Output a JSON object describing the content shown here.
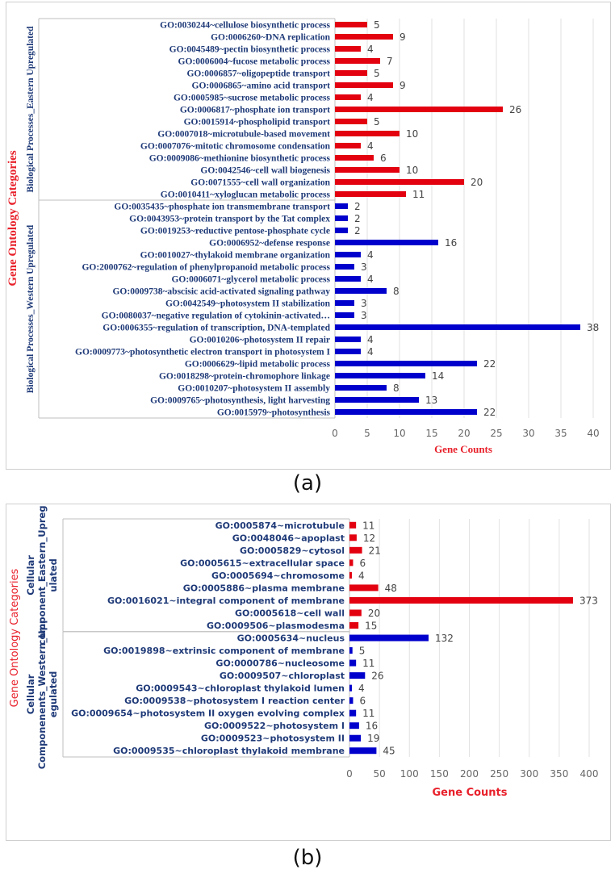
{
  "chart_data": [
    {
      "type": "bar",
      "orientation": "horizontal",
      "panel_label": "(a)",
      "ylabel": "Gene Ontology Categories",
      "xlabel": "Gene Counts",
      "xlim": [
        0,
        40
      ],
      "xticks": [
        "0",
        "5",
        "10",
        "15",
        "20",
        "25",
        "30",
        "35",
        "40"
      ],
      "groups": [
        {
          "name": "Biological Processes_Eastern Upregulated",
          "color": "#e3000f",
          "categories": [
            "GO:0030244~cellulose biosynthetic process",
            "GO:0006260~DNA replication",
            "GO:0045489~pectin biosynthetic process",
            "GO:0006004~fucose metabolic process",
            "GO:0006857~oligopeptide transport",
            "GO:0006865~amino acid transport",
            "GO:0005985~sucrose metabolic process",
            "GO:0006817~phosphate ion transport",
            "GO:0015914~phospholipid transport",
            "GO:0007018~microtubule-based movement",
            "GO:0007076~mitotic chromosome condensation",
            "GO:0009086~methionine biosynthetic process",
            "GO:0042546~cell wall biogenesis",
            "GO:0071555~cell wall organization",
            "GO:0010411~xyloglucan metabolic process"
          ],
          "values": [
            5,
            9,
            4,
            7,
            5,
            9,
            4,
            26,
            5,
            10,
            4,
            6,
            10,
            20,
            11
          ]
        },
        {
          "name": "Biological Processes_Western Upregulated",
          "color": "#0000cc",
          "categories": [
            "GO:0035435~phosphate ion transmembrane transport",
            "GO:0043953~protein transport by the Tat complex",
            "GO:0019253~reductive pentose-phosphate cycle",
            "GO:0006952~defense response",
            "GO:0010027~thylakoid membrane organization",
            "GO:2000762~regulation of phenylpropanoid metabolic process",
            "GO:0006071~glycerol metabolic process",
            "GO:0009738~abscisic acid-activated signaling pathway",
            "GO:0042549~photosystem II stabilization",
            "GO:0080037~negative regulation of cytokinin-activated…",
            "GO:0006355~regulation of transcription, DNA-templated",
            "GO:0010206~photosystem II repair",
            "GO:0009773~photosynthetic electron transport in photosystem I",
            "GO:0006629~lipid metabolic process",
            "GO:0018298~protein-chromophore linkage",
            "GO:0010207~photosystem II assembly",
            "GO:0009765~photosynthesis, light harvesting",
            "GO:0015979~photosynthesis"
          ],
          "values": [
            2,
            2,
            2,
            16,
            4,
            3,
            4,
            8,
            3,
            3,
            38,
            4,
            4,
            22,
            14,
            8,
            13,
            22
          ]
        }
      ]
    },
    {
      "type": "bar",
      "orientation": "horizontal",
      "panel_label": "(b)",
      "ylabel": "Gene Ontology Categories",
      "xlabel": "Gene Counts",
      "xlim": [
        0,
        400
      ],
      "xticks": [
        "0",
        "50",
        "100",
        "150",
        "200",
        "250",
        "300",
        "350",
        "400"
      ],
      "groups": [
        {
          "name": [
            "Cellular",
            "component_Eastern_Upreg",
            "ulated"
          ],
          "color": "#e3000f",
          "categories": [
            "GO:0005874~microtubule",
            "GO:0048046~apoplast",
            "GO:0005829~cytosol",
            "GO:0005615~extracellular space",
            "GO:0005694~chromosome",
            "GO:0005886~plasma membrane",
            "GO:0016021~integral component of membrane",
            "GO:0005618~cell wall",
            "GO:0009506~plasmodesma"
          ],
          "values": [
            11,
            12,
            21,
            6,
            4,
            48,
            373,
            20,
            15
          ]
        },
        {
          "name": [
            "Cellular",
            "Componenents_Western_Upr",
            "egulated"
          ],
          "color": "#0000cc",
          "categories": [
            "GO:0005634~nucleus",
            "GO:0019898~extrinsic component of membrane",
            "GO:0000786~nucleosome",
            "GO:0009507~chloroplast",
            "GO:0009543~chloroplast thylakoid lumen",
            "GO:0009538~photosystem I reaction center",
            "GO:0009654~photosystem II oxygen evolving complex",
            "GO:0009522~photosystem I",
            "GO:0009523~photosystem II",
            "GO:0009535~chloroplast thylakoid membrane"
          ],
          "values": [
            132,
            5,
            11,
            26,
            4,
            6,
            11,
            16,
            19,
            45
          ]
        }
      ]
    }
  ]
}
